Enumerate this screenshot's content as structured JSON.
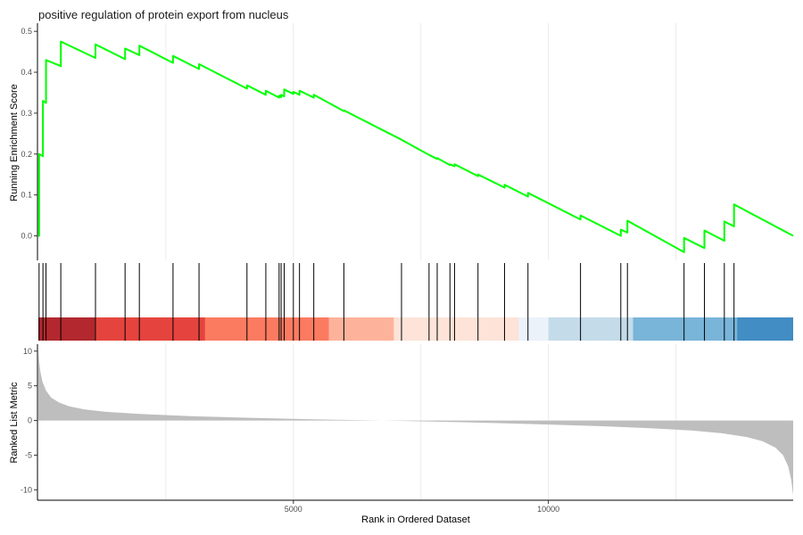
{
  "chart_data": {
    "type": "line",
    "title": "positive regulation of protein export from nucleus",
    "xlabel": "Rank in Ordered Dataset",
    "x_ticks": [
      5000,
      10000
    ],
    "xlim": [
      0,
      14800
    ],
    "line_color": "#00FF00",
    "grid": "vertical major gridlines",
    "enrichment_panel": {
      "ylabel": "Running Enrichment Score",
      "ylim": [
        -0.06,
        0.52
      ],
      "y_ticks": [
        0.0,
        0.1,
        0.2,
        0.3,
        0.4,
        0.5
      ],
      "y_tick_labels": [
        "0.0",
        "0.1",
        "0.2",
        "0.3",
        "0.4",
        "0.5"
      ],
      "points": [
        [
          0,
          0.0
        ],
        [
          14,
          0.0
        ],
        [
          14,
          0.2
        ],
        [
          90,
          0.195
        ],
        [
          90,
          0.33
        ],
        [
          150,
          0.325
        ],
        [
          150,
          0.43
        ],
        [
          440,
          0.415
        ],
        [
          440,
          0.475
        ],
        [
          1120,
          0.435
        ],
        [
          1120,
          0.468
        ],
        [
          1700,
          0.432
        ],
        [
          1700,
          0.458
        ],
        [
          1980,
          0.442
        ],
        [
          1980,
          0.465
        ],
        [
          2640,
          0.423
        ],
        [
          2640,
          0.44
        ],
        [
          3150,
          0.408
        ],
        [
          3150,
          0.42
        ],
        [
          4090,
          0.36
        ],
        [
          4090,
          0.368
        ],
        [
          4460,
          0.345
        ],
        [
          4460,
          0.355
        ],
        [
          4720,
          0.338
        ],
        [
          4720,
          0.343
        ],
        [
          4760,
          0.339
        ],
        [
          4760,
          0.345
        ],
        [
          4820,
          0.341
        ],
        [
          4820,
          0.358
        ],
        [
          5000,
          0.347
        ],
        [
          5000,
          0.352
        ],
        [
          5120,
          0.345
        ],
        [
          5120,
          0.355
        ],
        [
          5400,
          0.338
        ],
        [
          5400,
          0.345
        ],
        [
          5990,
          0.305
        ],
        [
          5990,
          0.307
        ],
        [
          7120,
          0.235
        ],
        [
          7120,
          0.235
        ],
        [
          7660,
          0.198
        ],
        [
          7660,
          0.198
        ],
        [
          7820,
          0.188
        ],
        [
          7820,
          0.19
        ],
        [
          8070,
          0.173
        ],
        [
          8070,
          0.175
        ],
        [
          8160,
          0.17
        ],
        [
          8160,
          0.175
        ],
        [
          8620,
          0.146
        ],
        [
          8620,
          0.15
        ],
        [
          9140,
          0.118
        ],
        [
          9140,
          0.125
        ],
        [
          9600,
          0.096
        ],
        [
          9600,
          0.105
        ],
        [
          10630,
          0.04
        ],
        [
          10630,
          0.05
        ],
        [
          11420,
          0.0
        ],
        [
          11420,
          0.015
        ],
        [
          11550,
          0.008
        ],
        [
          11550,
          0.037
        ],
        [
          12660,
          -0.04
        ],
        [
          12660,
          -0.005
        ],
        [
          13060,
          -0.03
        ],
        [
          13060,
          0.013
        ],
        [
          13450,
          -0.012
        ],
        [
          13450,
          0.035
        ],
        [
          13640,
          0.023
        ],
        [
          13640,
          0.077
        ],
        [
          14800,
          0.0
        ]
      ]
    },
    "hits_panel": {
      "hit_ranks": [
        14,
        90,
        150,
        440,
        1120,
        1700,
        1980,
        2640,
        3150,
        4090,
        4460,
        4720,
        4760,
        4820,
        5000,
        5120,
        5400,
        5990,
        7120,
        7660,
        7820,
        8070,
        8160,
        8620,
        9140,
        9600,
        10630,
        11420,
        11550,
        12660,
        13060,
        13450,
        13640
      ],
      "color_bands": [
        {
          "from": 0,
          "to": 1130,
          "color": "#B2282E"
        },
        {
          "from": 1130,
          "to": 3270,
          "color": "#E5443E"
        },
        {
          "from": 3270,
          "to": 5700,
          "color": "#FB7B61"
        },
        {
          "from": 5700,
          "to": 6970,
          "color": "#FDB39B"
        },
        {
          "from": 6970,
          "to": 9420,
          "color": "#FDE3D8"
        },
        {
          "from": 9420,
          "to": 10000,
          "color": "#ECF2FA"
        },
        {
          "from": 10000,
          "to": 11660,
          "color": "#C4DBEA"
        },
        {
          "from": 11660,
          "to": 13700,
          "color": "#79B4D9"
        },
        {
          "from": 13700,
          "to": 14800,
          "color": "#418DC4"
        }
      ]
    },
    "ranked_panel": {
      "ylabel": "Ranked List Metric",
      "ylim": [
        -11.5,
        11
      ],
      "y_ticks": [
        10,
        5,
        0,
        -5,
        -10
      ],
      "fill_color": "#BEBEBE",
      "points": [
        [
          0,
          10.2
        ],
        [
          15,
          8.5
        ],
        [
          40,
          7.0
        ],
        [
          80,
          5.6
        ],
        [
          150,
          4.3
        ],
        [
          250,
          3.3
        ],
        [
          400,
          2.6
        ],
        [
          600,
          2.05
        ],
        [
          900,
          1.6
        ],
        [
          1300,
          1.25
        ],
        [
          2000,
          0.95
        ],
        [
          3000,
          0.62
        ],
        [
          4000,
          0.4
        ],
        [
          5000,
          0.22
        ],
        [
          6000,
          0.08
        ],
        [
          7000,
          -0.05
        ],
        [
          8000,
          -0.2
        ],
        [
          9000,
          -0.38
        ],
        [
          10000,
          -0.58
        ],
        [
          11000,
          -0.82
        ],
        [
          12000,
          -1.12
        ],
        [
          12800,
          -1.45
        ],
        [
          13400,
          -1.85
        ],
        [
          13900,
          -2.4
        ],
        [
          14200,
          -3.0
        ],
        [
          14450,
          -3.9
        ],
        [
          14600,
          -5.0
        ],
        [
          14700,
          -6.6
        ],
        [
          14760,
          -8.5
        ],
        [
          14790,
          -10.2
        ],
        [
          14800,
          -10.8
        ]
      ]
    }
  }
}
